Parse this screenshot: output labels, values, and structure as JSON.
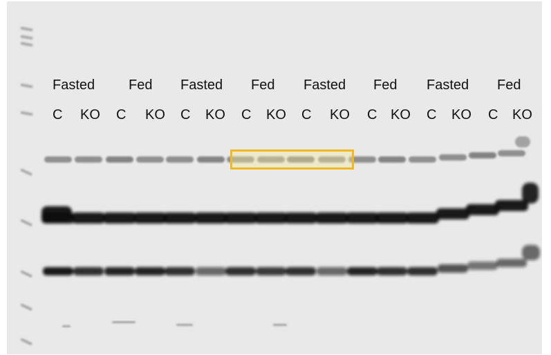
{
  "conditions": [
    "Fasted",
    "Fed",
    "Fasted",
    "Fed",
    "Fasted",
    "Fed",
    "Fasted",
    "Fed"
  ],
  "genotypes": [
    "C",
    "KO",
    "C",
    "KO",
    "C",
    "KO",
    "C",
    "KO",
    "C",
    "KO",
    "C",
    "KO",
    "C",
    "KO",
    "C",
    "KO"
  ],
  "colors": {
    "membrane": "#e9e9e9",
    "band": "#111111",
    "ladder": "#777777",
    "highlight_border": "#f2b81f",
    "highlight_fill": "#f5e996"
  }
}
